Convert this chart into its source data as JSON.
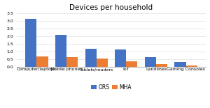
{
  "title": "Devices per household",
  "categories": [
    "Computer/laptops",
    "Mobile phones",
    "Tablets/readers",
    "IoT",
    "Landlines",
    "Gaming Consoles"
  ],
  "ors_values": [
    3.1,
    2.1,
    1.2,
    1.15,
    0.65,
    0.3
  ],
  "mha_values": [
    0.7,
    0.65,
    0.55,
    0.37,
    0.18,
    0.1
  ],
  "ors_color": "#4472C4",
  "mha_color": "#ED7D31",
  "ylim": [
    0,
    3.5
  ],
  "yticks": [
    0,
    0.5,
    1.0,
    1.5,
    2.0,
    2.5,
    3.0,
    3.5
  ],
  "legend_labels": [
    "ORS",
    "MHA"
  ],
  "bar_width": 0.38,
  "title_fontsize": 7.5,
  "tick_fontsize": 4.5,
  "legend_fontsize": 5.5,
  "background_color": "#ffffff"
}
